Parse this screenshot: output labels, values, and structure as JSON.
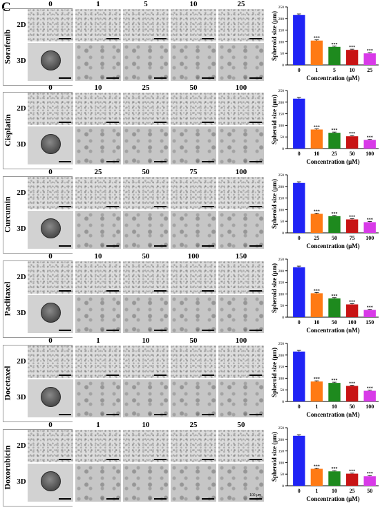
{
  "panel_letter": "C",
  "condition_labels": [
    "2D",
    "3D"
  ],
  "scale_label": "100 μm",
  "colors": [
    "#1f23f5",
    "#ff7a14",
    "#1e8a1e",
    "#c81414",
    "#d83ae8"
  ],
  "chart_data": [
    {
      "type": "bar",
      "drug": "Sorafenib",
      "doses": [
        "0",
        "1",
        "5",
        "10",
        "25"
      ],
      "categories": [
        "0",
        "1",
        "5",
        "10",
        "25"
      ],
      "values": [
        215,
        105,
        78,
        65,
        50
      ],
      "errors": [
        5,
        3,
        3,
        3,
        3
      ],
      "annotations": [
        "",
        "***",
        "***",
        "***",
        "***"
      ],
      "ylabel": "Spheroid size (μm)",
      "xlabel": "Concentration (μM)",
      "ylim": [
        0,
        250
      ],
      "yticks": [
        0,
        50,
        100,
        150,
        200,
        250
      ]
    },
    {
      "type": "bar",
      "drug": "Cisplatin",
      "doses": [
        "0",
        "10",
        "25",
        "50",
        "100"
      ],
      "categories": [
        "0",
        "10",
        "25",
        "50",
        "100"
      ],
      "values": [
        215,
        82,
        68,
        53,
        37
      ],
      "errors": [
        5,
        3,
        3,
        3,
        3
      ],
      "annotations": [
        "",
        "***",
        "***",
        "***",
        "***"
      ],
      "ylabel": "Spheroid size (μm)",
      "xlabel": "Concentration (μM)",
      "ylim": [
        0,
        250
      ],
      "yticks": [
        0,
        50,
        100,
        150,
        200,
        250
      ]
    },
    {
      "type": "bar",
      "drug": "Curcumin",
      "doses": [
        "0",
        "25",
        "50",
        "75",
        "100"
      ],
      "categories": [
        "0",
        "25",
        "50",
        "75",
        "100"
      ],
      "values": [
        215,
        82,
        72,
        58,
        46
      ],
      "errors": [
        5,
        3,
        3,
        3,
        3
      ],
      "annotations": [
        "",
        "***",
        "***",
        "***",
        "***"
      ],
      "ylabel": "Spheroid size (μm)",
      "xlabel": "Concentration (μM)",
      "ylim": [
        0,
        250
      ],
      "yticks": [
        0,
        50,
        100,
        150,
        200,
        250
      ]
    },
    {
      "type": "bar",
      "drug": "Paclitaxel",
      "doses": [
        "0",
        "10",
        "50",
        "100",
        "150"
      ],
      "categories": [
        "0",
        "10",
        "50",
        "100",
        "150"
      ],
      "values": [
        215,
        103,
        81,
        55,
        31
      ],
      "errors": [
        5,
        3,
        3,
        3,
        3
      ],
      "annotations": [
        "",
        "***",
        "***",
        "***",
        "***"
      ],
      "ylabel": "Spheroid size (μm)",
      "xlabel": "Concentration (nM)",
      "ylim": [
        0,
        250
      ],
      "yticks": [
        0,
        50,
        100,
        150,
        200,
        250
      ]
    },
    {
      "type": "bar",
      "drug": "Docetaxel",
      "doses": [
        "0",
        "1",
        "10",
        "50",
        "100"
      ],
      "categories": [
        "0",
        "1",
        "10",
        "50",
        "100"
      ],
      "values": [
        215,
        86,
        80,
        67,
        46
      ],
      "errors": [
        5,
        3,
        3,
        3,
        3
      ],
      "annotations": [
        "",
        "***",
        "***",
        "***",
        "***"
      ],
      "ylabel": "Spheroid size (μm)",
      "xlabel": "Concentration (nM)",
      "ylim": [
        0,
        250
      ],
      "yticks": [
        0,
        50,
        100,
        150,
        200,
        250
      ]
    },
    {
      "type": "bar",
      "drug": "Doxorubicin",
      "doses": [
        "0",
        "1",
        "10",
        "25",
        "50"
      ],
      "categories": [
        "0",
        "1",
        "10",
        "25",
        "50"
      ],
      "values": [
        215,
        73,
        62,
        52,
        41
      ],
      "errors": [
        5,
        3,
        3,
        3,
        3
      ],
      "annotations": [
        "",
        "***",
        "***",
        "***",
        "***"
      ],
      "ylabel": "Spheroid size (μm)",
      "xlabel": "Concentration (μM)",
      "ylim": [
        0,
        250
      ],
      "yticks": [
        0,
        50,
        100,
        150,
        200,
        250
      ]
    }
  ]
}
